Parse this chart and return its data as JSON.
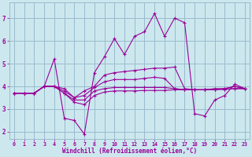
{
  "xlabel": "Windchill (Refroidissement éolien,°C)",
  "background_color": "#cce8ee",
  "line_color": "#990099",
  "grid_color": "#99bbcc",
  "xlim": [
    -0.5,
    23.5
  ],
  "ylim": [
    1.7,
    7.7
  ],
  "yticks": [
    2,
    3,
    4,
    5,
    6,
    7
  ],
  "xticks": [
    0,
    1,
    2,
    3,
    4,
    5,
    6,
    7,
    8,
    9,
    10,
    11,
    12,
    13,
    14,
    15,
    16,
    17,
    18,
    19,
    20,
    21,
    22,
    23
  ],
  "series": [
    [
      3.7,
      3.7,
      3.7,
      4.0,
      5.2,
      2.6,
      2.5,
      1.9,
      4.6,
      5.3,
      6.1,
      5.4,
      6.2,
      6.4,
      7.2,
      6.2,
      7.0,
      6.8,
      2.8,
      2.7,
      3.4,
      3.6,
      4.1,
      3.9
    ],
    [
      3.7,
      3.7,
      3.7,
      4.0,
      4.0,
      3.9,
      3.5,
      3.8,
      4.0,
      4.5,
      4.6,
      4.65,
      4.7,
      4.75,
      4.8,
      4.8,
      4.85,
      3.9,
      3.85,
      3.85,
      3.85,
      3.9,
      4.0,
      3.9
    ],
    [
      3.7,
      3.7,
      3.7,
      4.0,
      4.0,
      3.8,
      3.5,
      3.6,
      3.95,
      4.2,
      4.3,
      4.3,
      4.3,
      4.35,
      4.4,
      4.35,
      3.9,
      3.85,
      3.85,
      3.85,
      3.9,
      3.9,
      4.0,
      3.9
    ],
    [
      3.7,
      3.7,
      3.7,
      4.0,
      4.0,
      3.7,
      3.4,
      3.4,
      3.8,
      3.9,
      3.95,
      3.95,
      3.95,
      3.95,
      3.95,
      3.95,
      3.9,
      3.85,
      3.85,
      3.85,
      3.87,
      3.87,
      3.9,
      3.9
    ],
    [
      3.7,
      3.7,
      3.7,
      4.0,
      4.0,
      3.7,
      3.3,
      3.2,
      3.6,
      3.75,
      3.8,
      3.8,
      3.8,
      3.82,
      3.82,
      3.82,
      3.85,
      3.85,
      3.85,
      3.85,
      3.87,
      3.87,
      3.9,
      3.9
    ]
  ],
  "figsize": [
    3.2,
    2.0
  ],
  "dpi": 100
}
